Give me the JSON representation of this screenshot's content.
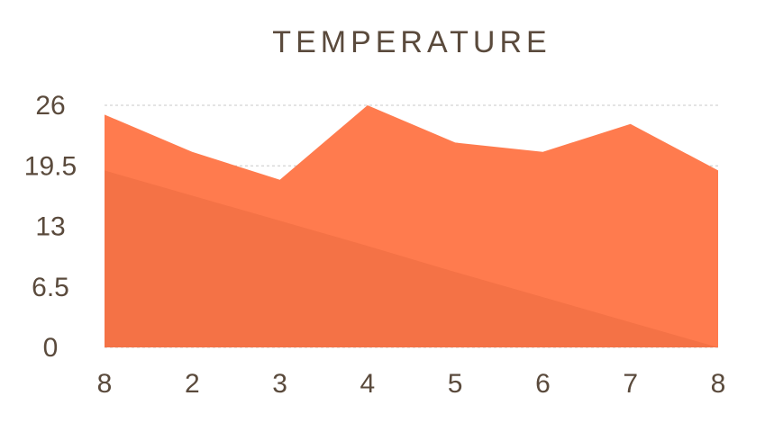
{
  "chart_data": {
    "type": "area",
    "title": "TEMPERATURE",
    "categories": [
      "8",
      "2",
      "3",
      "4",
      "5",
      "6",
      "7",
      "8"
    ],
    "series": [
      {
        "values": [
          25,
          21,
          18,
          26,
          22,
          21,
          24,
          19
        ],
        "color": "#ff7b4e"
      },
      {
        "values": [
          19,
          16.3,
          13.6,
          10.9,
          8.1,
          5.4,
          2.7,
          0
        ],
        "color": "#f47246"
      }
    ],
    "y_ticks": [
      "26",
      "19.5",
      "13",
      "6.5",
      "0"
    ],
    "ylim": [
      0,
      26
    ],
    "grid": true
  }
}
